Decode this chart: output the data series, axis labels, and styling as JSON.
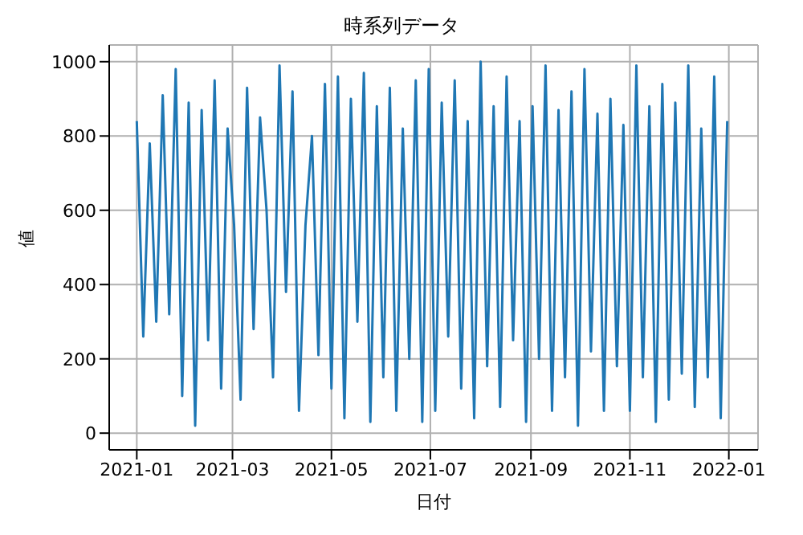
{
  "chart_data": {
    "type": "line",
    "title": "時系列データ",
    "xlabel": "日付",
    "ylabel": "値",
    "x": [
      "2021-01-01",
      "2021-01-05",
      "2021-01-09",
      "2021-01-13",
      "2021-01-17",
      "2021-01-21",
      "2021-01-25",
      "2021-01-29",
      "2021-02-02",
      "2021-02-06",
      "2021-02-10",
      "2021-02-14",
      "2021-02-18",
      "2021-02-22",
      "2021-02-26",
      "2021-03-02",
      "2021-03-06",
      "2021-03-10",
      "2021-03-14",
      "2021-03-18",
      "2021-03-22",
      "2021-03-26",
      "2021-03-30",
      "2021-04-03",
      "2021-04-07",
      "2021-04-11",
      "2021-04-15",
      "2021-04-19",
      "2021-04-23",
      "2021-04-27",
      "2021-05-01",
      "2021-05-05",
      "2021-05-09",
      "2021-05-13",
      "2021-05-17",
      "2021-05-21",
      "2021-05-25",
      "2021-05-29",
      "2021-06-02",
      "2021-06-06",
      "2021-06-10",
      "2021-06-14",
      "2021-06-18",
      "2021-06-22",
      "2021-06-26",
      "2021-06-30",
      "2021-07-04",
      "2021-07-08",
      "2021-07-12",
      "2021-07-16",
      "2021-07-20",
      "2021-07-24",
      "2021-07-28",
      "2021-08-01",
      "2021-08-05",
      "2021-08-09",
      "2021-08-13",
      "2021-08-17",
      "2021-08-21",
      "2021-08-25",
      "2021-08-29",
      "2021-09-02",
      "2021-09-06",
      "2021-09-10",
      "2021-09-14",
      "2021-09-18",
      "2021-09-22",
      "2021-09-26",
      "2021-09-30",
      "2021-10-04",
      "2021-10-08",
      "2021-10-12",
      "2021-10-16",
      "2021-10-20",
      "2021-10-24",
      "2021-10-28",
      "2021-11-01",
      "2021-11-05",
      "2021-11-09",
      "2021-11-13",
      "2021-11-17",
      "2021-11-21",
      "2021-11-25",
      "2021-11-29",
      "2021-12-03",
      "2021-12-07",
      "2021-12-11",
      "2021-12-15",
      "2021-12-19",
      "2021-12-23",
      "2021-12-27",
      "2021-12-31"
    ],
    "series": [
      {
        "color": "#1f77b4",
        "values": [
          840,
          260,
          780,
          300,
          910,
          320,
          980,
          100,
          890,
          20,
          870,
          250,
          950,
          120,
          820,
          560,
          90,
          930,
          280,
          850,
          600,
          150,
          990,
          380,
          920,
          60,
          560,
          800,
          210,
          940,
          120,
          960,
          40,
          900,
          300,
          970,
          30,
          880,
          150,
          930,
          60,
          820,
          200,
          950,
          30,
          980,
          60,
          890,
          260,
          950,
          120,
          840,
          40,
          1000,
          180,
          880,
          70,
          960,
          250,
          840,
          30,
          880,
          200,
          990,
          60,
          870,
          150,
          920,
          20,
          980,
          220,
          860,
          60,
          900,
          180,
          830,
          60,
          990,
          150,
          880,
          30,
          940,
          90,
          890,
          160,
          990,
          70,
          820,
          150,
          960,
          40,
          840
        ]
      }
    ],
    "xlim": [
      "2020-12-15",
      "2022-01-19"
    ],
    "ylim": [
      -45,
      1045
    ],
    "xticks": [
      {
        "value": "2021-01-01",
        "label": "2021-01"
      },
      {
        "value": "2021-03-01",
        "label": "2021-03"
      },
      {
        "value": "2021-05-01",
        "label": "2021-05"
      },
      {
        "value": "2021-07-01",
        "label": "2021-07"
      },
      {
        "value": "2021-09-01",
        "label": "2021-09"
      },
      {
        "value": "2021-11-01",
        "label": "2021-11"
      },
      {
        "value": "2022-01-01",
        "label": "2022-01"
      }
    ],
    "yticks": [
      0,
      200,
      400,
      600,
      800,
      1000
    ],
    "grid": true,
    "legend": false
  }
}
